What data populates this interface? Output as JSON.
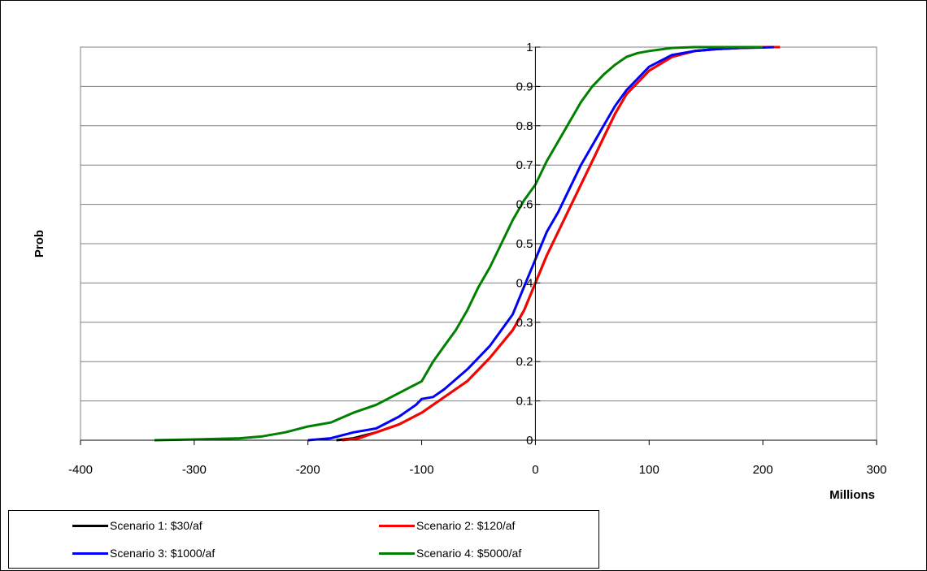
{
  "colors": {
    "scenario1": "#000000",
    "scenario2": "#ff0000",
    "scenario3": "#0000ff",
    "scenario4": "#008000",
    "grid": "#808080",
    "axis": "#000000"
  },
  "chart_data": {
    "type": "line",
    "title": "",
    "xlabel": "Millions",
    "ylabel": "Prob",
    "xlim": [
      -400,
      300
    ],
    "ylim": [
      0,
      1
    ],
    "x_ticks": [
      -400,
      -300,
      -200,
      -100,
      0,
      100,
      200,
      300
    ],
    "x_tick_labels": [
      "-400",
      "-300",
      "-200",
      "-100",
      "0",
      "100",
      "200",
      "300"
    ],
    "y_ticks": [
      0,
      0.1,
      0.2,
      0.3,
      0.4,
      0.5,
      0.6,
      0.7,
      0.8,
      0.9,
      1
    ],
    "y_tick_labels": [
      "0",
      "0.1",
      "0.2",
      "0.3",
      "0.4",
      "0.5",
      "0.6",
      "0.7",
      "0.8",
      "0.9",
      "1"
    ],
    "grid": "horizontal",
    "legend_position": "bottom",
    "series": [
      {
        "name": "Scenario 1: $30/af",
        "x": [
          -175,
          -160,
          -140,
          -120,
          -100,
          -80,
          -60,
          -40,
          -20,
          -10,
          0,
          10,
          20,
          30,
          40,
          50,
          60,
          70,
          80,
          100,
          120,
          140,
          160,
          180,
          200,
          215
        ],
        "y": [
          0,
          0.005,
          0.02,
          0.04,
          0.07,
          0.11,
          0.15,
          0.21,
          0.28,
          0.33,
          0.4,
          0.47,
          0.53,
          0.59,
          0.65,
          0.71,
          0.77,
          0.83,
          0.88,
          0.94,
          0.975,
          0.99,
          0.995,
          0.998,
          1,
          1
        ]
      },
      {
        "name": "Scenario 2: $120/af",
        "x": [
          -170,
          -155,
          -140,
          -120,
          -100,
          -80,
          -60,
          -40,
          -20,
          -10,
          0,
          10,
          20,
          30,
          40,
          50,
          60,
          70,
          80,
          100,
          120,
          140,
          160,
          180,
          200,
          215
        ],
        "y": [
          0,
          0.005,
          0.02,
          0.04,
          0.07,
          0.11,
          0.15,
          0.21,
          0.28,
          0.33,
          0.4,
          0.47,
          0.53,
          0.59,
          0.65,
          0.71,
          0.77,
          0.83,
          0.88,
          0.94,
          0.975,
          0.99,
          0.995,
          0.998,
          1,
          1
        ]
      },
      {
        "name": "Scenario 3: $1000/af",
        "x": [
          -200,
          -180,
          -160,
          -140,
          -120,
          -105,
          -100,
          -90,
          -80,
          -60,
          -40,
          -20,
          -10,
          0,
          10,
          20,
          30,
          40,
          50,
          60,
          70,
          80,
          100,
          120,
          140,
          160,
          180,
          200,
          210
        ],
        "y": [
          0,
          0.005,
          0.02,
          0.03,
          0.06,
          0.09,
          0.105,
          0.11,
          0.13,
          0.18,
          0.24,
          0.32,
          0.39,
          0.46,
          0.53,
          0.58,
          0.64,
          0.7,
          0.75,
          0.8,
          0.85,
          0.89,
          0.95,
          0.98,
          0.99,
          0.995,
          0.998,
          0.999,
          1
        ]
      },
      {
        "name": "Scenario 4: $5000/af",
        "x": [
          -335,
          -300,
          -260,
          -240,
          -220,
          -200,
          -180,
          -160,
          -140,
          -120,
          -100,
          -90,
          -80,
          -70,
          -60,
          -50,
          -40,
          -30,
          -20,
          -10,
          0,
          10,
          20,
          30,
          40,
          50,
          60,
          70,
          80,
          90,
          100,
          120,
          140,
          160,
          180,
          200
        ],
        "y": [
          0,
          0.002,
          0.005,
          0.01,
          0.02,
          0.035,
          0.045,
          0.07,
          0.09,
          0.12,
          0.15,
          0.2,
          0.24,
          0.28,
          0.33,
          0.39,
          0.44,
          0.5,
          0.56,
          0.61,
          0.65,
          0.71,
          0.76,
          0.81,
          0.86,
          0.9,
          0.93,
          0.955,
          0.975,
          0.985,
          0.99,
          0.998,
          1,
          1,
          1,
          1
        ]
      }
    ]
  }
}
